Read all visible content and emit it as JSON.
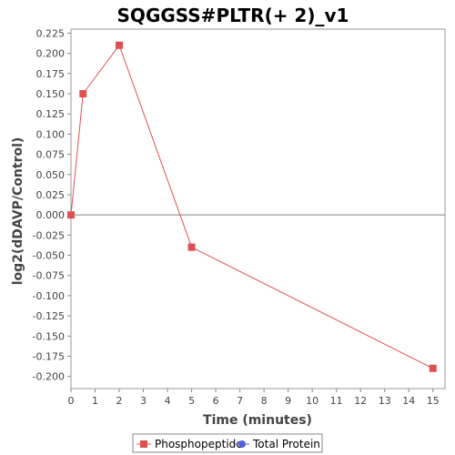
{
  "chart_data": {
    "type": "line",
    "title": "SQGGSS#PLTR(+ 2)_v1",
    "xlabel": "Time (minutes)",
    "ylabel": "log2(dDAVP/Control)",
    "xlim": [
      0,
      15.5
    ],
    "ylim": [
      -0.215,
      0.23
    ],
    "x_ticks": [
      0,
      1,
      2,
      3,
      4,
      5,
      6,
      7,
      8,
      9,
      10,
      11,
      12,
      13,
      14,
      15
    ],
    "y_ticks": [
      "0.225",
      "0.200",
      "0.175",
      "0.150",
      "0.125",
      "0.100",
      "0.075",
      "0.050",
      "0.025",
      "0.000",
      "-0.025",
      "-0.050",
      "-0.075",
      "-0.100",
      "-0.125",
      "-0.150",
      "-0.175",
      "-0.200"
    ],
    "grid": false,
    "zero_line": true,
    "legend_position": "bottom",
    "series": [
      {
        "name": "Phosphopeptide",
        "color": "#e05050",
        "marker": "square",
        "x": [
          0,
          0.5,
          2,
          5,
          15
        ],
        "y": [
          0.0,
          0.15,
          0.21,
          -0.04,
          -0.19
        ]
      },
      {
        "name": "Total Protein",
        "color": "#5560e0",
        "marker": "circle",
        "x": [],
        "y": []
      }
    ]
  }
}
